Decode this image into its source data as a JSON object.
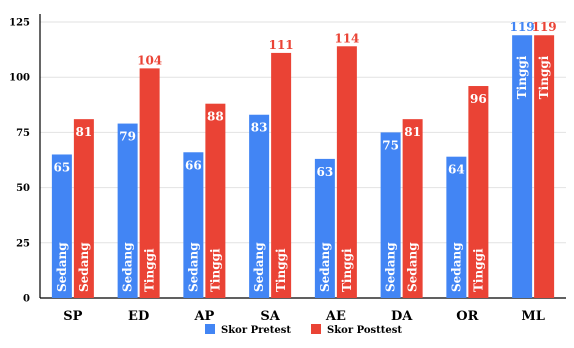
{
  "chart_data": {
    "type": "bar",
    "categories": [
      "SP",
      "ED",
      "AP",
      "SA",
      "AE",
      "DA",
      "OR",
      "ML"
    ],
    "ylim": [
      0,
      125
    ],
    "yticks": [
      0,
      25,
      50,
      75,
      100,
      125
    ],
    "grid": true,
    "legend_position": "bottom",
    "series": [
      {
        "name": "Skor Pretest",
        "color": "#4285f4",
        "values": [
          65,
          79,
          66,
          83,
          63,
          75,
          64,
          119
        ],
        "value_labels": [
          "65",
          "79",
          "66",
          "83",
          "63",
          "75",
          "64",
          "119"
        ],
        "category_labels": [
          "Sedang",
          "Sedang",
          "Sedang",
          "Sedang",
          "Sedang",
          "Sedang",
          "Sedang",
          "Tinggi"
        ]
      },
      {
        "name": "Skor Posttest",
        "color": "#ea4335",
        "values": [
          81,
          104,
          88,
          111,
          114,
          81,
          96,
          119
        ],
        "value_labels": [
          "81",
          "104",
          "88",
          "111",
          "114",
          "81",
          "96",
          "119"
        ],
        "category_labels": [
          "Sedang",
          "Tinggi",
          "Tinggi",
          "Tinggi",
          "Tinggi",
          "Sedang",
          "Tinggi",
          "Tinggi"
        ]
      }
    ]
  }
}
